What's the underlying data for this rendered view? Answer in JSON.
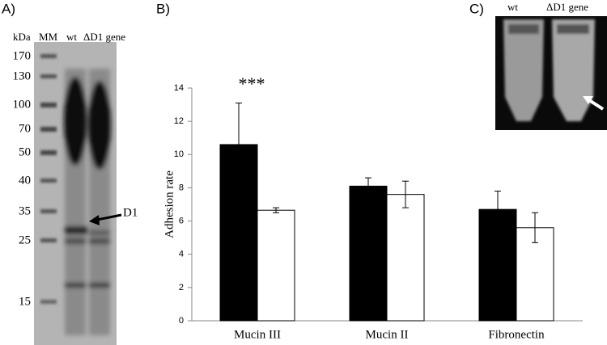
{
  "panel_labels": [
    "A)",
    "B)",
    "C)"
  ],
  "gel": {
    "header": [
      "kDa",
      "MM",
      "wt",
      "ΔD1 gene"
    ],
    "markers": [
      "170",
      "130",
      "100",
      "70",
      "50",
      "40",
      "35",
      "25",
      "15"
    ],
    "arrow_label": "D1"
  },
  "photo": {
    "labels": [
      "wt",
      "ΔD1 gene"
    ]
  },
  "chart_data": {
    "type": "bar",
    "ylabel": "Adhesion rate",
    "categories": [
      "Mucin III",
      "Mucin II",
      "Fibronectin"
    ],
    "series": [
      {
        "color": "#000000",
        "values": [
          10.6,
          8.1,
          6.7
        ],
        "errors": [
          2.5,
          0.5,
          1.1
        ]
      },
      {
        "color": "#ffffff",
        "values": [
          6.65,
          7.6,
          5.6
        ],
        "errors": [
          0.15,
          0.8,
          0.9
        ]
      }
    ],
    "annotations": [
      {
        "text": "***",
        "category": 0,
        "series": 0
      }
    ],
    "ylim": [
      0,
      14
    ],
    "yticks": [
      0,
      2,
      4,
      6,
      8,
      10,
      12,
      14
    ]
  }
}
